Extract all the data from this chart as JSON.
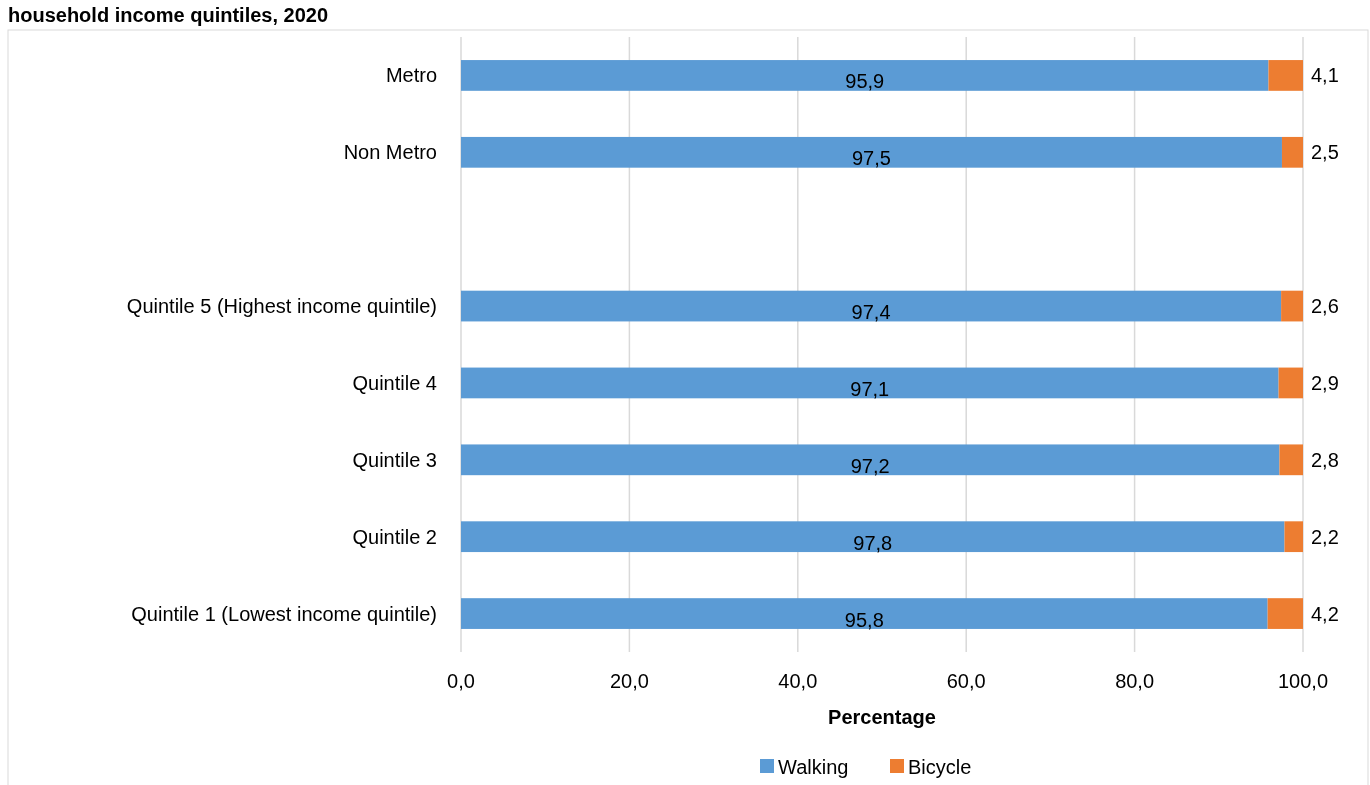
{
  "chart_data": {
    "type": "bar",
    "orientation": "horizontal",
    "stacked": true,
    "title": "household income quintiles, 2020",
    "xlabel": "Percentage",
    "categories": [
      "Metro",
      "Non Metro",
      null,
      "Quintile 5 (Highest income quintile)",
      "Quintile 4",
      "Quintile 3",
      "Quintile 2",
      "Quintile 1 (Lowest income quintile)"
    ],
    "series": [
      {
        "name": "Walking",
        "color": "#5b9bd5",
        "values": [
          95.9,
          97.5,
          null,
          97.4,
          97.1,
          97.2,
          97.8,
          95.8
        ],
        "value_labels": [
          "95,9",
          "97,5",
          null,
          "97,4",
          "97,1",
          "97,2",
          "97,8",
          "95,8"
        ]
      },
      {
        "name": "Bicycle",
        "color": "#ed7d31",
        "values": [
          4.1,
          2.5,
          null,
          2.6,
          2.9,
          2.8,
          2.2,
          4.2
        ],
        "value_labels": [
          "4,1",
          "2,5",
          null,
          "2,6",
          "2,9",
          "2,8",
          "2,2",
          "4,2"
        ]
      }
    ],
    "xlim": [
      0,
      100
    ],
    "xticks": [
      {
        "value": 0,
        "label": "0,0"
      },
      {
        "value": 20,
        "label": "20,0"
      },
      {
        "value": 40,
        "label": "40,0"
      },
      {
        "value": 60,
        "label": "60,0"
      },
      {
        "value": 80,
        "label": "80,0"
      },
      {
        "value": 100,
        "label": "100,0"
      }
    ],
    "grid": "x",
    "legend": "bottom"
  }
}
